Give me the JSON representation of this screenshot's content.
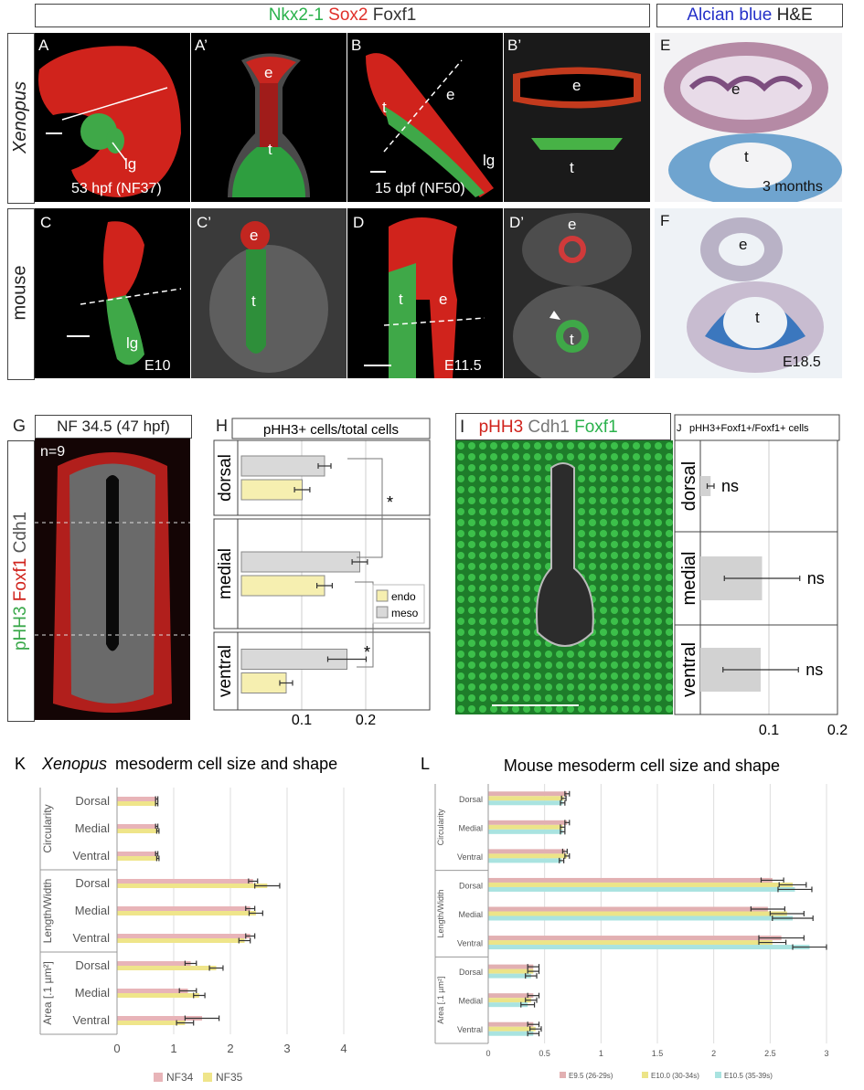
{
  "header": {
    "stain_green": "Nkx2-1",
    "stain_red": "Sox2",
    "stain_white": "Foxf1",
    "alcian": "Alcian blue",
    "he": "H&E"
  },
  "rows": {
    "xenopus": "Xenopus",
    "mouse": "mouse"
  },
  "panels": {
    "A": {
      "letter": "A",
      "lbl1": "lg",
      "stage": "53 hpf (NF37)"
    },
    "A2": {
      "letter": "A’",
      "e": "e",
      "t": "t"
    },
    "B": {
      "letter": "B",
      "t": "t",
      "e": "e",
      "lg": "lg",
      "stage": "15 dpf (NF50)"
    },
    "B2": {
      "letter": "B’",
      "e": "e",
      "t": "t"
    },
    "E": {
      "letter": "E",
      "e": "e",
      "t": "t",
      "stage": "3 months"
    },
    "C": {
      "letter": "C",
      "lg": "lg",
      "stage": "E10"
    },
    "C2": {
      "letter": "C’",
      "e": "e",
      "t": "t"
    },
    "D": {
      "letter": "D",
      "t": "t",
      "e": "e",
      "stage": "E11.5"
    },
    "D2": {
      "letter": "D’",
      "e": "e",
      "t": "t"
    },
    "F": {
      "letter": "F",
      "e": "e",
      "t": "t",
      "stage": "E18.5"
    },
    "G": {
      "letter": "G",
      "title": "NF 34.5 (47 hpf)",
      "n": "n=9",
      "side_green": "pHH3",
      "side_red": "Foxf1",
      "side_white": "Cdh1"
    },
    "I": {
      "letter": "I",
      "t_red": "pHH3",
      "t_white": "Cdh1",
      "t_green": "Foxf1"
    }
  },
  "colors": {
    "endo": "#f6efb0",
    "meso": "#d9d9d9",
    "nf34": "#e8b4b8",
    "nf35": "#efe58a",
    "e95": "#e2b0b2",
    "e100": "#ece488",
    "e105": "#a9e3e0"
  },
  "chart_data": [
    {
      "id": "H",
      "type": "bar",
      "title": "pHH3+ cells/total cells",
      "groups": [
        "dorsal",
        "medial",
        "ventral"
      ],
      "series": [
        {
          "name": "endo",
          "values": [
            0.095,
            0.13,
            0.07
          ],
          "err": [
            0.012,
            0.012,
            0.01
          ]
        },
        {
          "name": "meso",
          "values": [
            0.13,
            0.185,
            0.165
          ],
          "err": [
            0.01,
            0.012,
            0.03
          ]
        }
      ],
      "ticks": [
        "0.1",
        "0.2"
      ],
      "xlim": [
        0,
        0.3
      ],
      "sig": [
        "*",
        "*"
      ]
    },
    {
      "id": "J",
      "type": "bar",
      "title": "pHH3+Foxf1+/Foxf1+ cells",
      "groups": [
        "dorsal",
        "medial",
        "ventral"
      ],
      "values": [
        0.015,
        0.09,
        0.088
      ],
      "err": [
        0.005,
        0.055,
        0.055
      ],
      "annot": [
        "ns",
        "ns",
        "ns"
      ],
      "ticks": [
        "0.1",
        "0.2"
      ],
      "xlim": [
        0,
        0.2
      ]
    },
    {
      "id": "K",
      "type": "bar",
      "title_italic": "Xenopus",
      "title_rest": "mesoderm cell size and shape",
      "groups": [
        {
          "name": "Circularity",
          "rows": [
            "Dorsal",
            "Medial",
            "Ventral"
          ]
        },
        {
          "name": "Length/Width",
          "rows": [
            "Dorsal",
            "Medial",
            "Ventral"
          ]
        },
        {
          "name": "Area [.1 µm²]",
          "rows": [
            "Dorsal",
            "Medial",
            "Ventral"
          ]
        }
      ],
      "series": [
        {
          "name": "NF34",
          "values": [
            0.7,
            0.7,
            0.7,
            2.4,
            2.35,
            2.35,
            1.3,
            1.25,
            1.5
          ],
          "err": [
            0.02,
            0.02,
            0.02,
            0.08,
            0.08,
            0.08,
            0.1,
            0.15,
            0.3
          ]
        },
        {
          "name": "NF35",
          "values": [
            0.7,
            0.72,
            0.72,
            2.65,
            2.45,
            2.25,
            1.75,
            1.45,
            1.2
          ],
          "err": [
            0.02,
            0.02,
            0.02,
            0.22,
            0.12,
            0.1,
            0.12,
            0.1,
            0.15
          ]
        }
      ],
      "ticks": [
        "0",
        "1",
        "2",
        "3",
        "4"
      ],
      "xlim": [
        0,
        4
      ]
    },
    {
      "id": "L",
      "type": "bar",
      "title": "Mouse mesoderm cell size and shape",
      "groups": [
        {
          "name": "Circularity",
          "rows": [
            "Dorsal",
            "Medial",
            "Ventral"
          ]
        },
        {
          "name": "Length/Width",
          "rows": [
            "Dorsal",
            "Medial",
            "Ventral"
          ]
        },
        {
          "name": "Area [.1 µm²]",
          "rows": [
            "Dorsal",
            "Medial",
            "Ventral"
          ]
        }
      ],
      "series": [
        {
          "name": "E9.5 (26-29s)",
          "values": [
            0.7,
            0.7,
            0.68,
            2.52,
            2.48,
            2.6,
            0.4,
            0.4,
            0.4
          ],
          "err": [
            0.02,
            0.02,
            0.02,
            0.1,
            0.15,
            0.2,
            0.05,
            0.05,
            0.05
          ]
        },
        {
          "name": "E10.0 (30-34s)",
          "values": [
            0.67,
            0.66,
            0.7,
            2.7,
            2.65,
            2.52,
            0.4,
            0.38,
            0.42
          ],
          "err": [
            0.02,
            0.02,
            0.02,
            0.12,
            0.15,
            0.12,
            0.05,
            0.05,
            0.05
          ]
        },
        {
          "name": "E10.5 (35-39s)",
          "values": [
            0.66,
            0.66,
            0.65,
            2.72,
            2.7,
            2.85,
            0.38,
            0.35,
            0.4
          ],
          "err": [
            0.02,
            0.02,
            0.02,
            0.15,
            0.18,
            0.15,
            0.05,
            0.06,
            0.05
          ]
        }
      ],
      "ticks": [
        "0",
        "0.5",
        "1",
        "1.5",
        "2",
        "2.5",
        "3"
      ],
      "xlim": [
        0,
        3
      ]
    }
  ],
  "labels": {
    "H": "H",
    "J": "J",
    "K": "K",
    "L": "L"
  }
}
